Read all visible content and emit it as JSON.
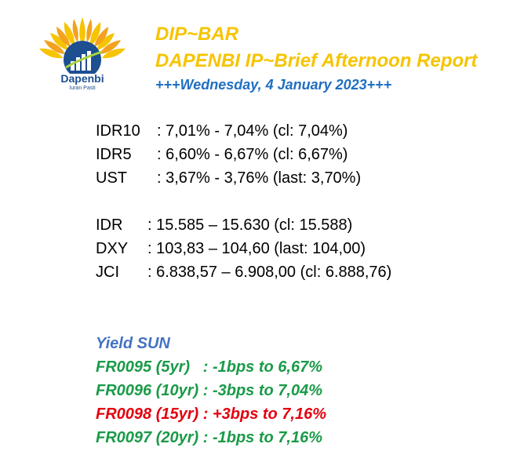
{
  "header": {
    "logo_name": "Dapenbi",
    "logo_tagline": "Iuran Pasti",
    "title": "DIP~BAR",
    "subtitle": "DAPENBI IP~Brief Afternoon Report",
    "date_line": "+++Wednesday, 4 January 2023+++"
  },
  "markets_1": [
    {
      "label": "IDR10",
      "value": ": 7,01% - 7,04% (cl: 7,04%)"
    },
    {
      "label": "IDR5",
      "value": ": 6,60% - 6,67% (cl: 6,67%)"
    },
    {
      "label": "UST",
      "value": ": 3,67% - 3,76% (last: 3,70%)"
    }
  ],
  "markets_2": [
    {
      "label": "IDR",
      "value": ": 15.585 – 15.630 (cl: 15.588)"
    },
    {
      "label": "DXY",
      "value": ": 103,83 – 104,60 (last: 104,00)"
    },
    {
      "label": "JCI",
      "value": ": 6.838,57 – 6.908,00 (cl: 6.888,76)"
    }
  ],
  "yield_sun": {
    "title": "Yield SUN",
    "rows": [
      {
        "text": "FR0095 (5yr)   : -1bps to 6,67%",
        "color": "#1a9a48"
      },
      {
        "text": "FR0096 (10yr) : -3bps to 7,04%",
        "color": "#1a9a48"
      },
      {
        "text": "FR0098 (15yr) : +3bps to 7,16%",
        "color": "#e3000f"
      },
      {
        "text": "FR0097 (20yr) : -1bps to 7,16%",
        "color": "#1a9a48"
      }
    ]
  }
}
